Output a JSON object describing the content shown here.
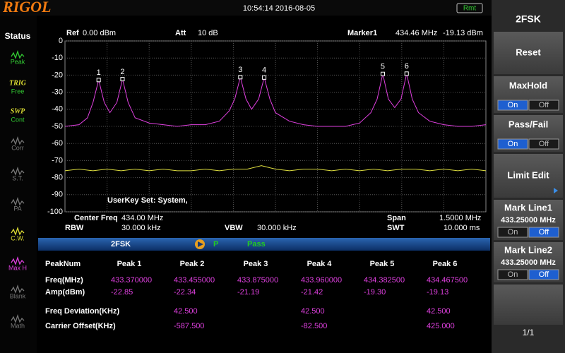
{
  "header": {
    "logo": "RIGOL",
    "datetime": "10:54:14 2016-08-05",
    "remote": "Rmt"
  },
  "status": {
    "title": "Status",
    "items": [
      {
        "label": "Peak"
      },
      {
        "tag": "TRIG",
        "label": "Free"
      },
      {
        "tag": "SWP",
        "label": "Cont"
      },
      {
        "label": "Corr"
      },
      {
        "label": "S.T."
      },
      {
        "label": "PA"
      },
      {
        "label": "C.W."
      },
      {
        "label": "Max H"
      },
      {
        "label": "Blank"
      },
      {
        "label": "Math"
      }
    ]
  },
  "settings": {
    "ref": "Ref",
    "ref_value": "0.00 dBm",
    "att": "Att",
    "att_value": "10 dB",
    "marker": "Marker1",
    "marker_freq": "434.46 MHz",
    "marker_amp": "-19.13 dBm",
    "center_freq": "Center Freq",
    "center_value": "434.00 MHz",
    "span": "Span",
    "span_value": "1.5000 MHz",
    "rbw": "RBW",
    "rbw_value": "30.000 kHz",
    "vbw": "VBW",
    "vbw_value": "30.000 kHz",
    "swt": "SWT",
    "swt_value": "10.000 ms",
    "userkey": "UserKey Set:  System,"
  },
  "chart_data": {
    "type": "line",
    "xlim": [
      433.25,
      434.75
    ],
    "ylim": [
      -100,
      0
    ],
    "yticks": [
      0,
      -10,
      -20,
      -30,
      -40,
      -50,
      -60,
      -70,
      -80,
      -90,
      -100
    ],
    "grid": true,
    "series": [
      {
        "color": "#e040e0",
        "x": [
          433.25,
          433.3,
          433.33,
          433.35,
          433.37,
          433.39,
          433.41,
          433.435,
          433.455,
          433.475,
          433.5,
          433.55,
          433.6,
          433.65,
          433.7,
          433.75,
          433.8,
          433.835,
          433.855,
          433.875,
          433.895,
          433.915,
          433.94,
          433.96,
          433.98,
          434.0,
          434.05,
          434.1,
          434.15,
          434.2,
          434.25,
          434.3,
          434.34,
          434.3625,
          434.3825,
          434.4025,
          434.425,
          434.4475,
          434.4675,
          434.4875,
          434.51,
          434.55,
          434.6,
          434.65,
          434.7,
          434.75
        ],
        "values": [
          -50,
          -49,
          -45,
          -36,
          -22.85,
          -36,
          -42,
          -36,
          -22.34,
          -36,
          -45,
          -48,
          -49,
          -50,
          -49,
          -49,
          -47,
          -41,
          -34,
          -21.19,
          -34,
          -40,
          -34,
          -21.42,
          -34,
          -42,
          -47,
          -49,
          -50,
          -50,
          -50,
          -48,
          -42,
          -34,
          -19.3,
          -34,
          -39,
          -34,
          -19.13,
          -34,
          -42,
          -47,
          -49,
          -50,
          -50,
          -49
        ]
      },
      {
        "color": "#e0e040",
        "x": [
          433.25,
          433.3,
          433.35,
          433.4,
          433.45,
          433.5,
          433.55,
          433.6,
          433.65,
          433.7,
          433.75,
          433.8,
          433.85,
          433.9,
          433.95,
          434.0,
          434.05,
          434.1,
          434.15,
          434.2,
          434.25,
          434.3,
          434.35,
          434.4,
          434.45,
          434.5,
          434.55,
          434.6,
          434.65,
          434.7,
          434.75
        ],
        "values": [
          -76,
          -75,
          -76,
          -75,
          -76,
          -75,
          -76,
          -75,
          -76,
          -76,
          -75,
          -76,
          -75,
          -75,
          -73,
          -75,
          -76,
          -75,
          -75,
          -76,
          -75,
          -76,
          -75,
          -76,
          -75,
          -75,
          -76,
          -75,
          -76,
          -75,
          -76
        ]
      }
    ],
    "markers": {
      "labels": [
        "1",
        "2",
        "3",
        "4",
        "5",
        "6"
      ],
      "x": [
        433.37,
        433.455,
        433.875,
        433.96,
        434.3825,
        434.4675
      ],
      "values": [
        -22.85,
        -22.34,
        -21.19,
        -21.42,
        -19.3,
        -19.13
      ]
    }
  },
  "result_bar": {
    "mode": "2FSK",
    "p": "P",
    "status": "Pass"
  },
  "table": {
    "columns": [
      "PeakNum",
      "Peak 1",
      "Peak 2",
      "Peak 3",
      "Peak 4",
      "Peak 5",
      "Peak 6"
    ],
    "rows": [
      [
        "Freq(MHz)",
        "433.370000",
        "433.455000",
        "433.875000",
        "433.960000",
        "434.382500",
        "434.467500"
      ],
      [
        "Amp(dBm)",
        "-22.85",
        "-22.34",
        "-21.19",
        "-21.42",
        "-19.30",
        "-19.13"
      ],
      [
        "Freq Deviation(KHz)",
        null,
        "42.500",
        null,
        "42.500",
        null,
        "42.500"
      ],
      [
        "Carrier Offset(KHz)",
        null,
        "-587.500",
        null,
        "-82.500",
        null,
        "425.000"
      ]
    ]
  },
  "menu": {
    "title": "2FSK",
    "buttons": [
      {
        "label": "Reset"
      },
      {
        "label": "MaxHold",
        "on": "On",
        "off": "Off",
        "selected": "on"
      },
      {
        "label": "Pass/Fail",
        "on": "On",
        "off": "Off",
        "selected": "on"
      },
      {
        "label": "Limit Edit"
      },
      {
        "label": "Mark Line1",
        "value": "433.25000 MHz",
        "on": "On",
        "off": "Off",
        "selected": "off"
      },
      {
        "label": "Mark Line2",
        "value": "433.25000 MHz",
        "on": "On",
        "off": "Off",
        "selected": "off"
      }
    ],
    "page": "1/1"
  }
}
